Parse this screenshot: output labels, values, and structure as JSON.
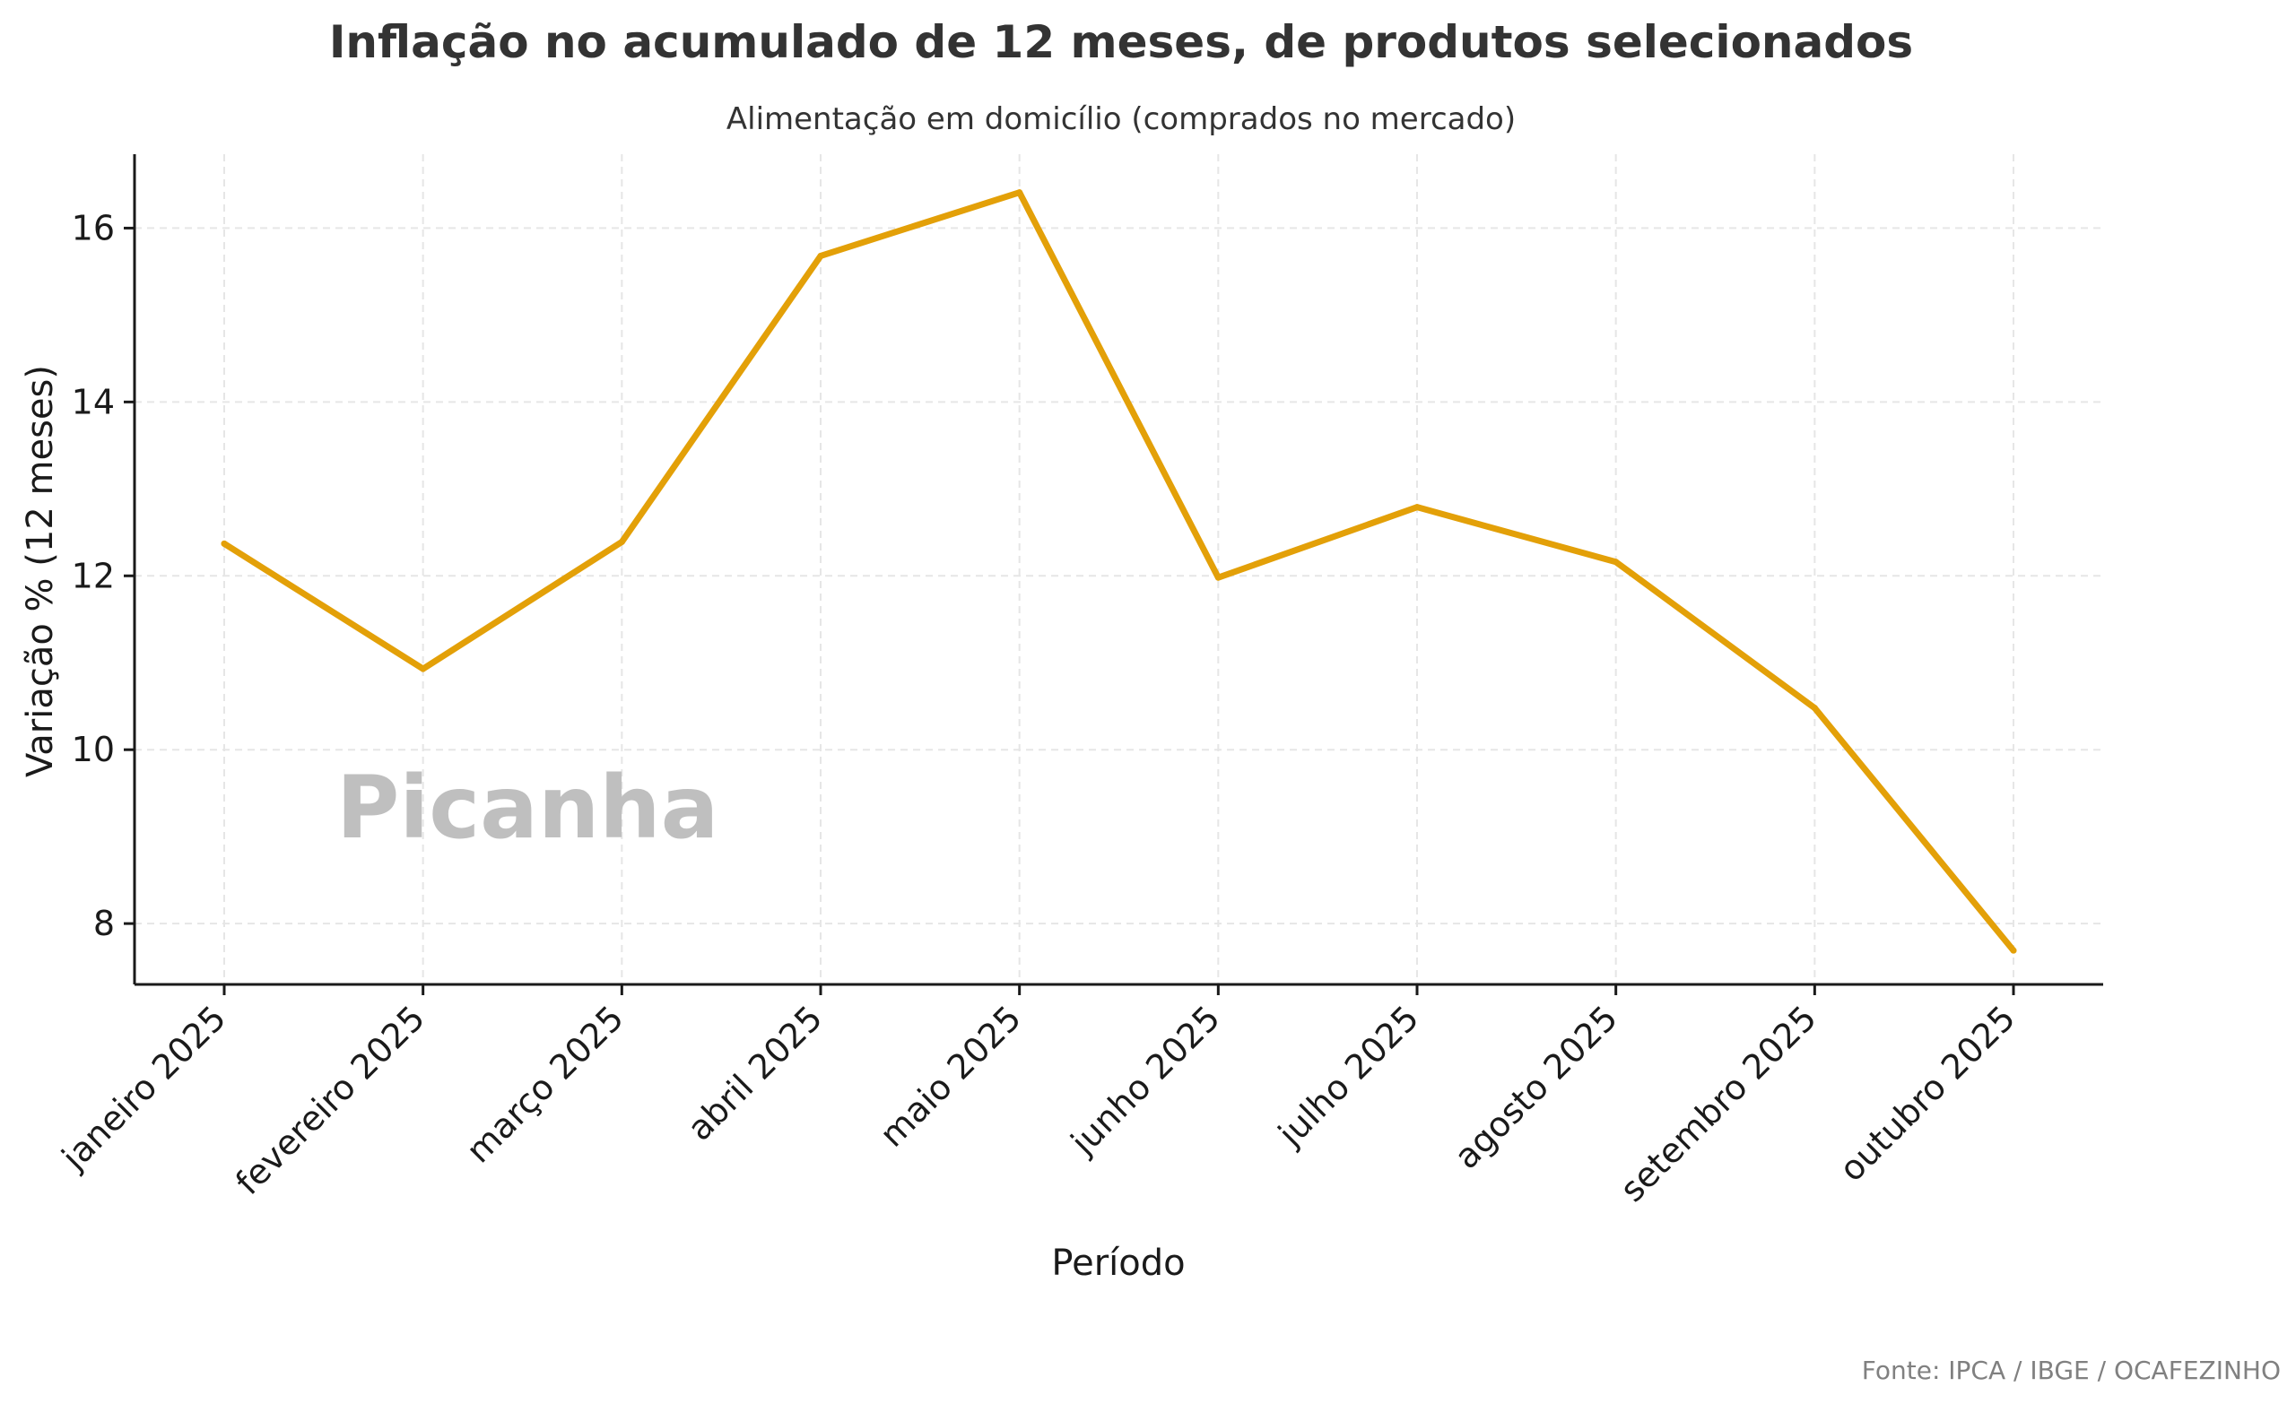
{
  "chart_data": {
    "type": "line",
    "title": "Inflação no acumulado de 12 meses, de produtos selecionados",
    "subtitle": "Alimentação em domicílio (comprados no mercado)",
    "xlabel": "Período",
    "ylabel": "Variação % (12 meses)",
    "categories": [
      "janeiro 2025",
      "fevereiro 2025",
      "março 2025",
      "abril 2025",
      "maio 2025",
      "junho 2025",
      "julho 2025",
      "agosto 2025",
      "setembro 2025",
      "outubro 2025"
    ],
    "series": [
      {
        "color": "#E3A008",
        "values": [
          12.37,
          10.93,
          12.39,
          15.68,
          16.41,
          11.98,
          12.79,
          12.16,
          10.48,
          7.69
        ]
      }
    ],
    "ylim": [
      7.3,
      16.85
    ],
    "yticks": [
      8,
      10,
      12,
      14,
      16
    ],
    "grid": true,
    "annotation": "Picanha",
    "source": "Fonte: IPCA / IBGE / OCAFEZINHO"
  }
}
